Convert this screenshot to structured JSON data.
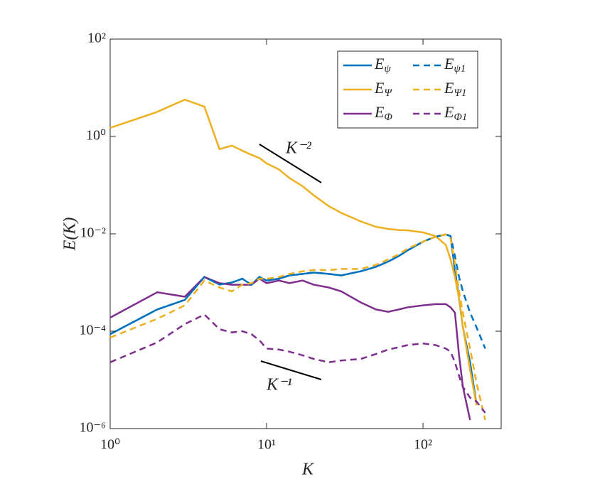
{
  "chart_data": {
    "type": "line",
    "xlabel": "K",
    "ylabel": "E(K)",
    "xscale": "log",
    "yscale": "log",
    "xlim": [
      1,
      316
    ],
    "ylim": [
      1e-06,
      100
    ],
    "xticks": [
      {
        "value": 1,
        "label": "10⁰"
      },
      {
        "value": 10,
        "label": "10¹"
      },
      {
        "value": 100,
        "label": "10²"
      }
    ],
    "yticks": [
      {
        "value": 1e-06,
        "label": "10⁻⁶"
      },
      {
        "value": 0.0001,
        "label": "10⁻⁴"
      },
      {
        "value": 0.01,
        "label": "10⁻²"
      },
      {
        "value": 1,
        "label": "10⁰"
      },
      {
        "value": 100,
        "label": "10²"
      }
    ],
    "grid": false,
    "legend": "upper right",
    "annotations": [
      "K⁻²",
      "K⁻¹"
    ],
    "x": [
      1,
      2,
      3,
      4,
      5,
      6,
      7,
      8,
      9,
      10,
      12,
      14,
      17,
      20,
      25,
      30,
      40,
      50,
      60,
      70,
      80,
      100,
      120,
      140,
      150,
      160,
      170,
      180,
      200,
      220,
      250
    ],
    "series": [
      {
        "name": "Eψ",
        "color": "#0072BD",
        "linestyle": "solid",
        "values": [
          8.7e-05,
          0.00028,
          0.00044,
          0.0013,
          0.00091,
          0.001,
          0.0012,
          0.0009,
          0.0013,
          0.0011,
          0.0012,
          0.0014,
          0.0015,
          0.0016,
          0.0015,
          0.0014,
          0.0017,
          0.0021,
          0.0027,
          0.0035,
          0.0046,
          0.0069,
          0.0087,
          0.0097,
          0.009,
          0.0018,
          0.00047,
          0.00012,
          2.3e-05,
          3.1e-06,
          null
        ]
      },
      {
        "name": "EΨ",
        "color": "#EDB120",
        "linestyle": "solid",
        "values": [
          1.5,
          3.2,
          5.7,
          4.1,
          0.55,
          0.65,
          0.51,
          0.42,
          0.36,
          0.28,
          0.21,
          0.14,
          0.095,
          0.062,
          0.037,
          0.027,
          0.018,
          0.014,
          0.0126,
          0.012,
          0.0118,
          0.0107,
          0.009,
          0.0059,
          0.003,
          0.0013,
          0.00047,
          0.000123,
          1.6e-05,
          3e-06,
          null
        ]
      },
      {
        "name": "EΦ",
        "color": "#7E2F8E",
        "linestyle": "solid",
        "values": [
          0.00019,
          0.00063,
          0.00051,
          0.0013,
          0.00097,
          0.0009,
          0.0009,
          0.0009,
          0.0012,
          0.00097,
          0.0011,
          0.00097,
          0.0011,
          0.0009,
          0.00079,
          0.00066,
          0.00039,
          0.00028,
          0.00025,
          0.00028,
          0.00031,
          0.00034,
          0.00036,
          0.00036,
          0.00031,
          0.00024,
          3.2e-05,
          7.2e-06,
          1.5e-06,
          null,
          null
        ]
      },
      {
        "name": "Eψ1",
        "color": "#0072BD",
        "linestyle": "dashed",
        "values": [
          8.7e-05,
          0.00028,
          0.00044,
          0.0013,
          0.00091,
          0.001,
          0.0012,
          0.0009,
          0.0013,
          0.0011,
          0.0012,
          0.0014,
          0.0015,
          0.0016,
          0.0015,
          0.0014,
          0.0017,
          0.0021,
          0.0027,
          0.0035,
          0.0046,
          0.0069,
          0.0087,
          0.0097,
          0.009,
          0.0035,
          0.0013,
          0.00066,
          0.00024,
          0.00012,
          4.4e-05
        ]
      },
      {
        "name": "EΨ1",
        "color": "#EDB120",
        "linestyle": "dashed",
        "values": [
          7.4e-05,
          0.00018,
          0.00034,
          0.0011,
          0.00079,
          0.00066,
          0.0009,
          0.00097,
          0.0012,
          0.0012,
          0.0013,
          0.0015,
          0.0017,
          0.0018,
          0.0018,
          0.0019,
          0.0019,
          0.0023,
          0.003,
          0.0038,
          0.005,
          0.0069,
          0.0087,
          0.0097,
          0.0081,
          0.0025,
          0.00066,
          0.00024,
          4.4e-05,
          8.6e-06,
          1.5e-06
        ]
      },
      {
        "name": "EΦ1",
        "color": "#7E2F8E",
        "linestyle": "dashed",
        "values": [
          2.3e-05,
          5.9e-05,
          0.00014,
          0.00022,
          0.00011,
          9.4e-05,
          0.0001,
          8.7e-05,
          6.5e-05,
          4.4e-05,
          4.2e-05,
          3.8e-05,
          3.2e-05,
          2.7e-05,
          2.3e-05,
          2.5e-05,
          2.7e-05,
          3.4e-05,
          4.2e-05,
          4.7e-05,
          5.2e-05,
          5.6e-05,
          5.2e-05,
          4.4e-05,
          3.8e-05,
          2.3e-05,
          1.2e-05,
          7.2e-06,
          4.3e-06,
          3.6e-06,
          2.1e-06
        ]
      }
    ]
  }
}
